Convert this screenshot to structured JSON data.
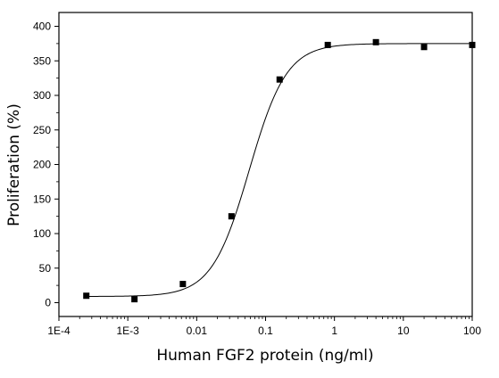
{
  "chart_data": {
    "type": "scatter",
    "title": "",
    "xlabel": "Human FGF2 protein (ng/ml)",
    "ylabel": "Proliferation (%)",
    "x_scale": "log",
    "xlim": [
      0.0001,
      100
    ],
    "ylim": [
      -20,
      420
    ],
    "x_ticks": [
      {
        "value": 0.0001,
        "label": "1E-4"
      },
      {
        "value": 0.001,
        "label": "1E-3"
      },
      {
        "value": 0.01,
        "label": "0.01"
      },
      {
        "value": 0.1,
        "label": "0.1"
      },
      {
        "value": 1,
        "label": "1"
      },
      {
        "value": 10,
        "label": "10"
      },
      {
        "value": 100,
        "label": "100"
      }
    ],
    "y_ticks": [
      {
        "value": 0,
        "label": "0"
      },
      {
        "value": 50,
        "label": "50"
      },
      {
        "value": 100,
        "label": "100"
      },
      {
        "value": 150,
        "label": "150"
      },
      {
        "value": 200,
        "label": "200"
      },
      {
        "value": 250,
        "label": "250"
      },
      {
        "value": 300,
        "label": "300"
      },
      {
        "value": 350,
        "label": "350"
      },
      {
        "value": 400,
        "label": "400"
      }
    ],
    "grid": false,
    "legend": false,
    "marker": "square",
    "color": "#000000",
    "points": [
      {
        "x": 0.00025,
        "y": 10
      },
      {
        "x": 0.00125,
        "y": 5
      },
      {
        "x": 0.0063,
        "y": 27
      },
      {
        "x": 0.032,
        "y": 125
      },
      {
        "x": 0.16,
        "y": 323
      },
      {
        "x": 0.8,
        "y": 373
      },
      {
        "x": 4,
        "y": 377
      },
      {
        "x": 20,
        "y": 370
      },
      {
        "x": 100,
        "y": 373
      }
    ],
    "fit_curve": {
      "model": "4PL",
      "bottom": 9,
      "top": 375,
      "ec50": 0.058,
      "hill": 1.6
    }
  }
}
